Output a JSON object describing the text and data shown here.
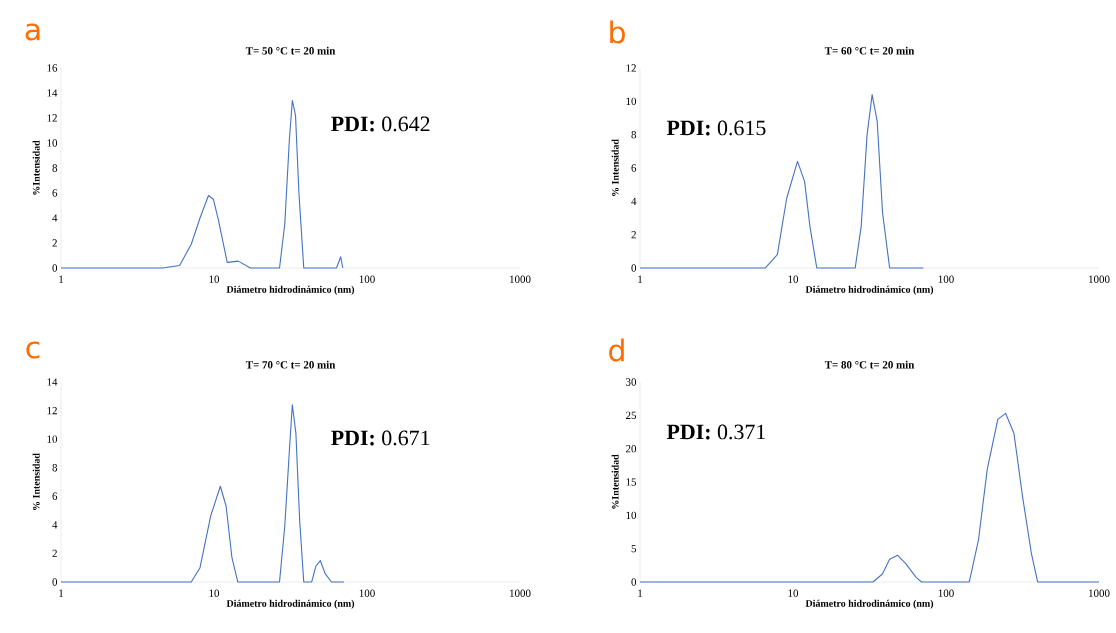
{
  "chart_data": [
    {
      "type": "line",
      "title": "T= 50 °C t= 20 min",
      "xlabel": "Diámetro hidrodinámico  (nm)",
      "ylabel": "%Intensidad",
      "annotations": [
        "a",
        "**PDI:** 0.642"
      ],
      "log": "x",
      "color": "#4472c4",
      "xlim": [
        1,
        1000
      ],
      "xticks": [
        1,
        10,
        100,
        1000
      ],
      "ylim": [
        0,
        16
      ],
      "yticks": [
        0,
        2,
        4,
        6,
        8,
        10,
        12,
        14,
        16
      ],
      "x": [
        1,
        4.6,
        5.96,
        7.1,
        8.1,
        9.2,
        9.9,
        10.7,
        12.2,
        14.4,
        17.3,
        26.8,
        29.0,
        31.1,
        32.5,
        34.1,
        35.9,
        38.6,
        63.2,
        67.3,
        69.4
      ],
      "values": [
        0,
        0,
        0.2,
        1.9,
        4.0,
        5.8,
        5.5,
        3.8,
        0.45,
        0.55,
        0,
        0,
        3.5,
        10.3,
        13.4,
        12.2,
        6.0,
        0,
        0,
        0.9,
        0
      ]
    },
    {
      "type": "line",
      "title": "T= 60 °C t= 20 min",
      "xlabel": "Diámetro hidrodinámico  (nm)",
      "ylabel": "% Intensidad",
      "annotations": [
        "b",
        "**PDI:** 0.615"
      ],
      "log": "x",
      "color": "#4472c4",
      "xlim": [
        1,
        1000
      ],
      "xticks": [
        1,
        10,
        100,
        1000
      ],
      "ylim": [
        0,
        12
      ],
      "yticks": [
        0,
        2,
        4,
        6,
        8,
        10,
        12
      ],
      "x": [
        1,
        6.6,
        7.9,
        9.1,
        10.7,
        11.9,
        12.9,
        14.3,
        25.5,
        27.9,
        30.5,
        32.9,
        35.5,
        38.5,
        42.8,
        71.1
      ],
      "values": [
        0,
        0,
        0.8,
        4.2,
        6.4,
        5.2,
        2.5,
        0,
        0,
        2.5,
        8.0,
        10.4,
        8.8,
        3.3,
        0,
        0
      ]
    },
    {
      "type": "line",
      "title": "T= 70 °C t= 20 min",
      "xlabel": "Diámetro hidrodinámico  (nm)",
      "ylabel": "% Intensidad",
      "annotations": [
        "c",
        "**PDI:** 0.671"
      ],
      "log": "x",
      "color": "#4472c4",
      "xlim": [
        1,
        1000
      ],
      "xticks": [
        1,
        10,
        100,
        1000
      ],
      "ylim": [
        0,
        14
      ],
      "yticks": [
        0,
        2,
        4,
        6,
        8,
        10,
        12,
        14
      ],
      "x": [
        1,
        7.1,
        8.1,
        9.5,
        11.0,
        12.0,
        13.1,
        14.3,
        26.8,
        29.0,
        31.1,
        32.5,
        34.3,
        36.3,
        38.6,
        43.5,
        46.3,
        49.5,
        53.2,
        58.5,
        70.8
      ],
      "values": [
        0,
        0,
        1.0,
        4.6,
        6.7,
        5.3,
        1.7,
        0,
        0,
        3.9,
        9.2,
        12.4,
        10.4,
        4.3,
        0,
        0,
        1.1,
        1.5,
        0.6,
        0,
        0
      ]
    },
    {
      "type": "line",
      "title": "T= 80 °C t= 20 min",
      "xlabel": "Diámetro hidrodinámico  (nm)",
      "ylabel": "%Intensidad",
      "annotations": [
        "d",
        "**PDI:** 0.371"
      ],
      "log": "x",
      "color": "#4472c4",
      "xlim": [
        1,
        1000
      ],
      "xticks": [
        1,
        10,
        100,
        1000
      ],
      "ylim": [
        0,
        30
      ],
      "yticks": [
        0,
        5,
        10,
        15,
        20,
        25,
        30
      ],
      "x": [
        1,
        33.3,
        38.4,
        42.8,
        48.3,
        54.4,
        63.8,
        69.2,
        142,
        163,
        186,
        218,
        245,
        278,
        317,
        362,
        397,
        1000
      ],
      "values": [
        0,
        0,
        1.2,
        3.4,
        4.0,
        2.8,
        0.7,
        0,
        0,
        6.3,
        16.9,
        24.4,
        25.3,
        22.3,
        12.7,
        4.2,
        0,
        0
      ]
    }
  ]
}
